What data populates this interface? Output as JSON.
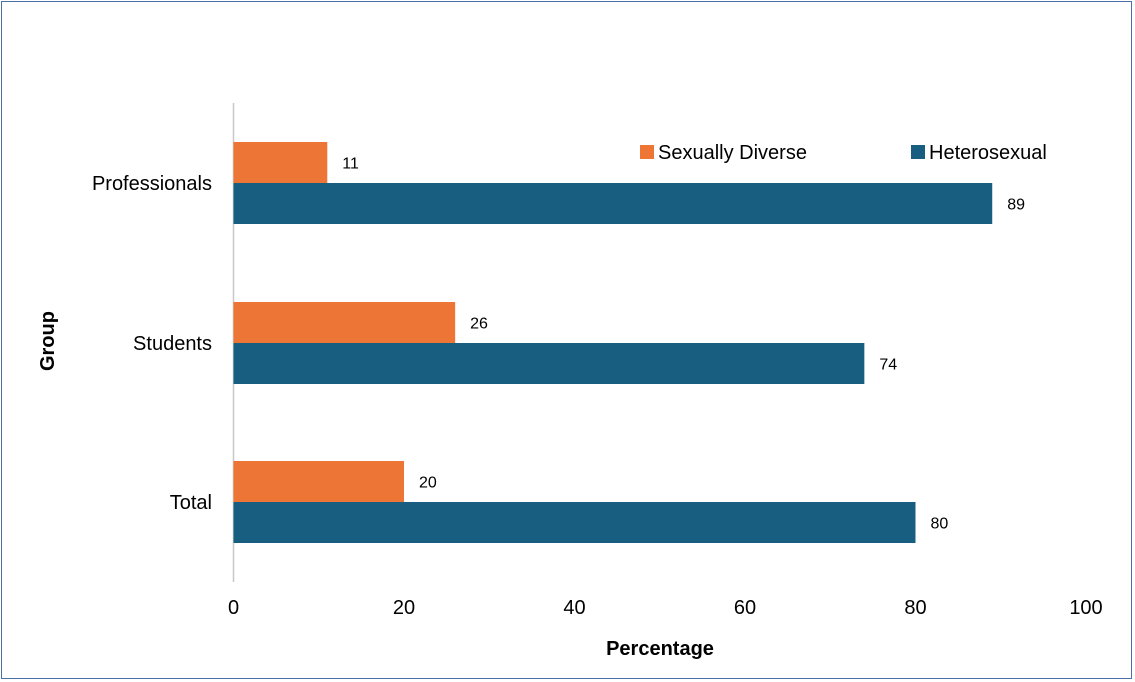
{
  "chart_data": {
    "type": "bar",
    "orientation": "horizontal",
    "title": "",
    "xlabel": "Percentage",
    "ylabel": "Group",
    "xlim": [
      0,
      100
    ],
    "x_ticks": [
      "0",
      "20",
      "40",
      "60",
      "80",
      "100"
    ],
    "categories": [
      "Professionals",
      "Students",
      "Total"
    ],
    "series": [
      {
        "name": "Sexually Diverse",
        "color": "#ed7535",
        "values": [
          11,
          26,
          20
        ],
        "labels": [
          "11",
          "26",
          "20"
        ]
      },
      {
        "name": "Heterosexual",
        "color": "#175e80",
        "values": [
          89,
          74,
          80
        ],
        "labels": [
          "89",
          "74",
          "80"
        ]
      }
    ],
    "grid": false,
    "legend": "top-right"
  }
}
